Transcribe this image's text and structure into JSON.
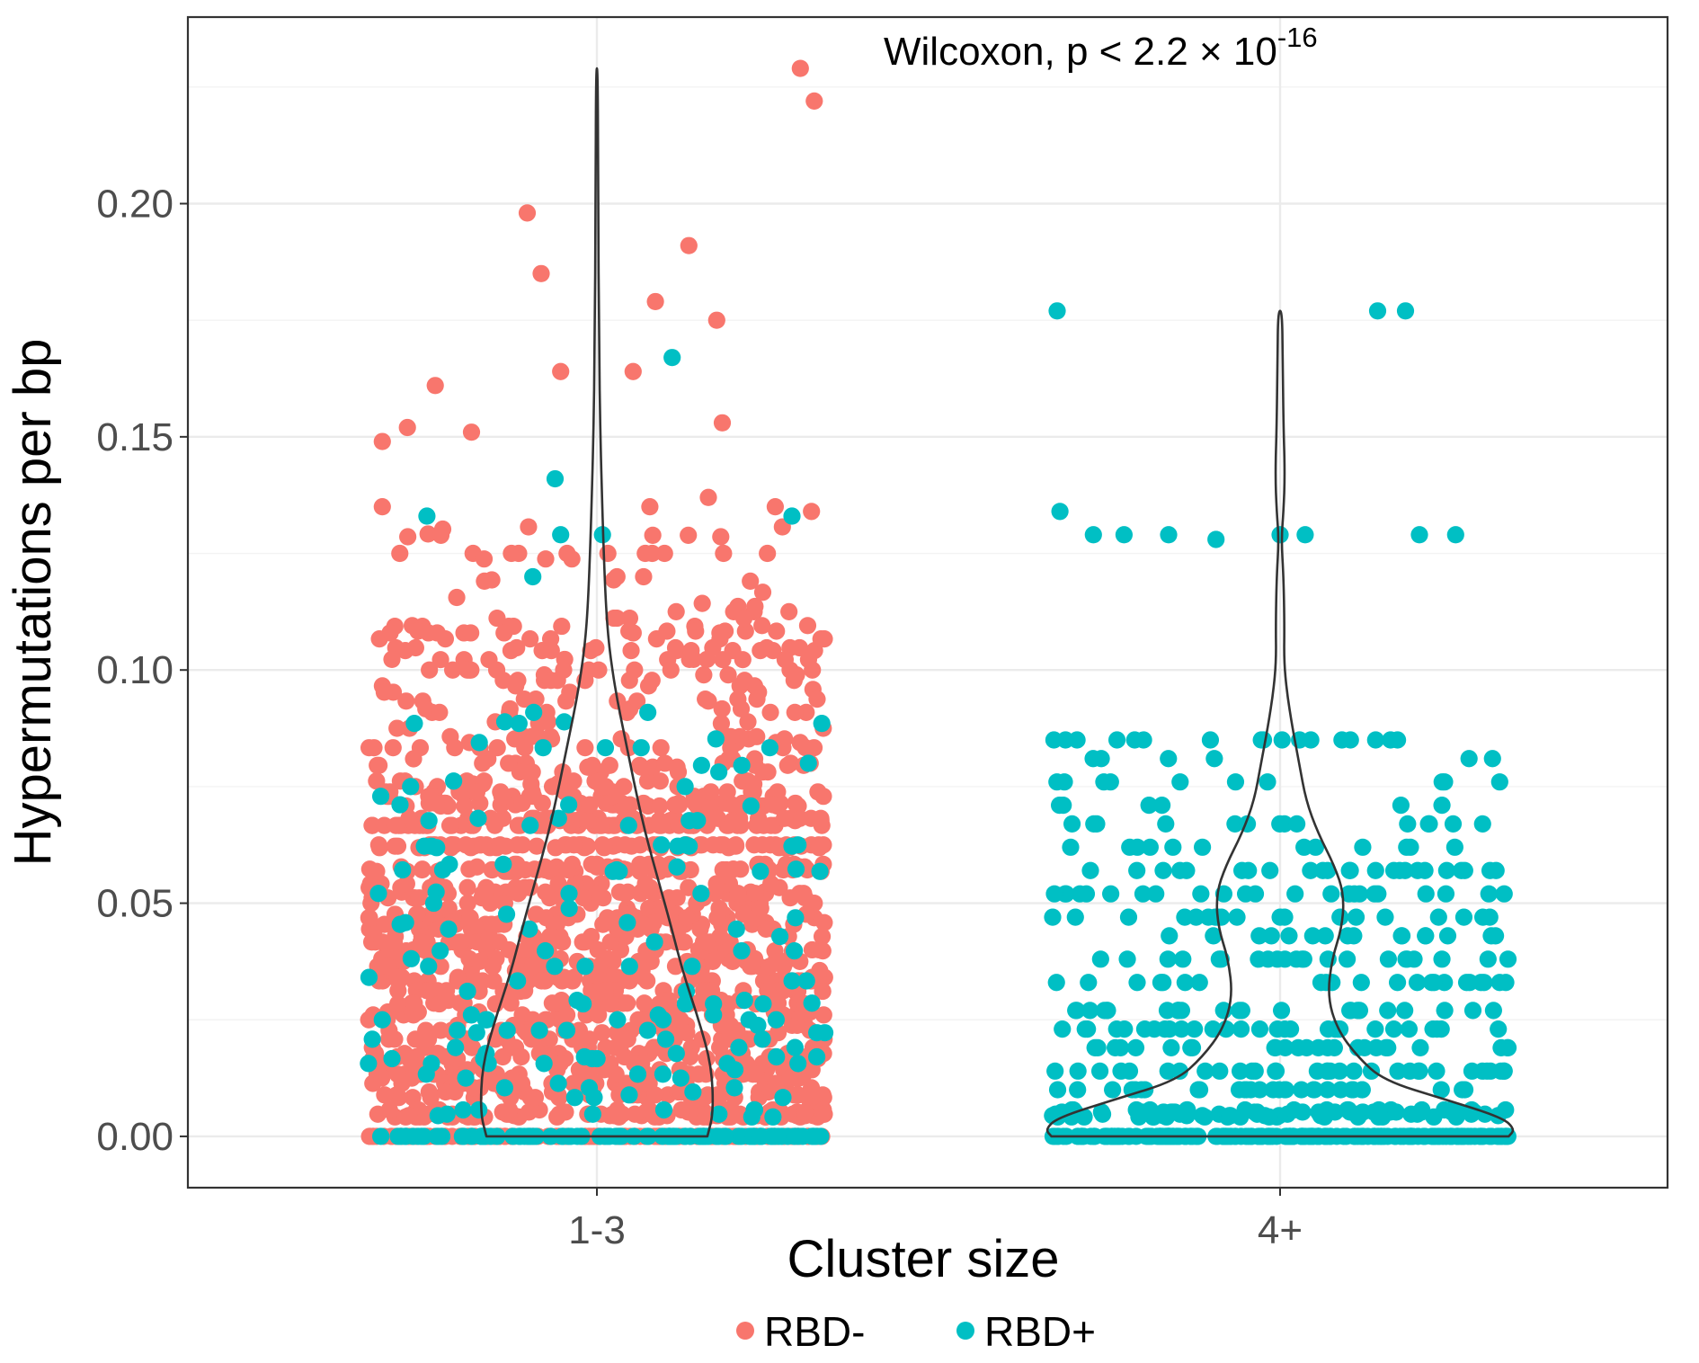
{
  "chart_data": {
    "type": "scatter",
    "subtype": "jitter-with-violin",
    "title": "",
    "xlabel": "Cluster size",
    "ylabel": "Hypermutations per bp",
    "categories": [
      "1-3",
      "4+"
    ],
    "ylim": [
      -0.011,
      0.24
    ],
    "yticks": [
      0.0,
      0.05,
      0.1,
      0.15,
      0.2
    ],
    "ytick_labels": [
      "0.00",
      "0.05",
      "0.10",
      "0.15",
      "0.20"
    ],
    "grid": true,
    "legend": {
      "position": "bottom",
      "entries": [
        {
          "label": "RBD-",
          "color": "#F8766D"
        },
        {
          "label": "RBD+",
          "color": "#00BFC4"
        }
      ]
    },
    "annotation": {
      "text": "Wilcoxon, p < 2.2 × 10",
      "superscript": "-16"
    },
    "colors": {
      "rbd_neg": "#F8766D",
      "rbd_pos": "#00BFC4",
      "violin": "#333333",
      "grid_major": "#EBEBEB",
      "grid_minor": "#F3F3F3",
      "panel_border": "#333333"
    },
    "series": [
      {
        "name": "RBD-",
        "category": "1-3",
        "n": 1700,
        "highlighted_points": [
          {
            "jitter": 0.73,
            "y": 0.229
          },
          {
            "jitter": 0.78,
            "y": 0.222
          },
          {
            "jitter": -0.25,
            "y": 0.198
          },
          {
            "jitter": -0.2,
            "y": 0.185
          },
          {
            "jitter": 0.33,
            "y": 0.191
          },
          {
            "jitter": 0.21,
            "y": 0.179
          },
          {
            "jitter": 0.43,
            "y": 0.175
          },
          {
            "jitter": -0.58,
            "y": 0.161
          },
          {
            "jitter": -0.13,
            "y": 0.164
          },
          {
            "jitter": 0.13,
            "y": 0.164
          },
          {
            "jitter": -0.68,
            "y": 0.152
          },
          {
            "jitter": 0.45,
            "y": 0.153
          },
          {
            "jitter": -0.77,
            "y": 0.149
          },
          {
            "jitter": -0.45,
            "y": 0.151
          },
          {
            "jitter": 0.77,
            "y": 0.134
          },
          {
            "jitter": 0.64,
            "y": 0.135
          },
          {
            "jitter": 0.19,
            "y": 0.135
          },
          {
            "jitter": 0.4,
            "y": 0.137
          },
          {
            "jitter": -0.77,
            "y": 0.135
          }
        ]
      },
      {
        "name": "RBD+",
        "category": "1-3",
        "n": 260,
        "highlighted_points": [
          {
            "jitter": 0.27,
            "y": 0.167
          },
          {
            "jitter": -0.15,
            "y": 0.141
          },
          {
            "jitter": -0.61,
            "y": 0.133
          },
          {
            "jitter": -0.13,
            "y": 0.129
          },
          {
            "jitter": 0.02,
            "y": 0.129
          },
          {
            "jitter": 0.7,
            "y": 0.133
          },
          {
            "jitter": -0.23,
            "y": 0.12
          }
        ]
      },
      {
        "name": "RBD+",
        "category": "4+",
        "n": 620,
        "highlighted_points": [
          {
            "jitter": -0.8,
            "y": 0.177
          },
          {
            "jitter": 0.35,
            "y": 0.177
          },
          {
            "jitter": 0.45,
            "y": 0.177
          },
          {
            "jitter": -0.79,
            "y": 0.134
          },
          {
            "jitter": -0.67,
            "y": 0.129
          },
          {
            "jitter": -0.56,
            "y": 0.129
          },
          {
            "jitter": -0.4,
            "y": 0.129
          },
          {
            "jitter": -0.23,
            "y": 0.128
          },
          {
            "jitter": 0.0,
            "y": 0.129
          },
          {
            "jitter": 0.09,
            "y": 0.129
          },
          {
            "jitter": 0.5,
            "y": 0.129
          },
          {
            "jitter": 0.63,
            "y": 0.129
          }
        ]
      }
    ],
    "violins": [
      {
        "category": "1-3",
        "profile": [
          {
            "y": 0.0,
            "w": 0.128
          },
          {
            "y": 0.005,
            "w": 0.135
          },
          {
            "y": 0.015,
            "w": 0.133
          },
          {
            "y": 0.025,
            "w": 0.118
          },
          {
            "y": 0.035,
            "w": 0.1
          },
          {
            "y": 0.045,
            "w": 0.086
          },
          {
            "y": 0.055,
            "w": 0.071
          },
          {
            "y": 0.065,
            "w": 0.056
          },
          {
            "y": 0.075,
            "w": 0.044
          },
          {
            "y": 0.085,
            "w": 0.033
          },
          {
            "y": 0.095,
            "w": 0.022
          },
          {
            "y": 0.105,
            "w": 0.014
          },
          {
            "y": 0.115,
            "w": 0.01
          },
          {
            "y": 0.13,
            "w": 0.007
          },
          {
            "y": 0.15,
            "w": 0.004
          },
          {
            "y": 0.17,
            "w": 0.0025
          },
          {
            "y": 0.2,
            "w": 0.0015
          },
          {
            "y": 0.229,
            "w": 0.001
          }
        ]
      },
      {
        "category": "4+",
        "profile": [
          {
            "y": 0.0,
            "w": 0.265
          },
          {
            "y": 0.0015,
            "w": 0.272
          },
          {
            "y": 0.004,
            "w": 0.258
          },
          {
            "y": 0.008,
            "w": 0.19
          },
          {
            "y": 0.012,
            "w": 0.12
          },
          {
            "y": 0.017,
            "w": 0.09
          },
          {
            "y": 0.023,
            "w": 0.066
          },
          {
            "y": 0.03,
            "w": 0.055
          },
          {
            "y": 0.038,
            "w": 0.06
          },
          {
            "y": 0.045,
            "w": 0.072
          },
          {
            "y": 0.052,
            "w": 0.074
          },
          {
            "y": 0.058,
            "w": 0.063
          },
          {
            "y": 0.065,
            "w": 0.044
          },
          {
            "y": 0.072,
            "w": 0.03
          },
          {
            "y": 0.08,
            "w": 0.022
          },
          {
            "y": 0.088,
            "w": 0.014
          },
          {
            "y": 0.095,
            "w": 0.008
          },
          {
            "y": 0.102,
            "w": 0.0045
          },
          {
            "y": 0.11,
            "w": 0.005
          },
          {
            "y": 0.12,
            "w": 0.004
          },
          {
            "y": 0.128,
            "w": 0.0015
          },
          {
            "y": 0.134,
            "w": 0.004
          },
          {
            "y": 0.142,
            "w": 0.0055
          },
          {
            "y": 0.152,
            "w": 0.004
          },
          {
            "y": 0.165,
            "w": 0.003
          },
          {
            "y": 0.177,
            "w": 0.0025
          }
        ]
      }
    ]
  }
}
